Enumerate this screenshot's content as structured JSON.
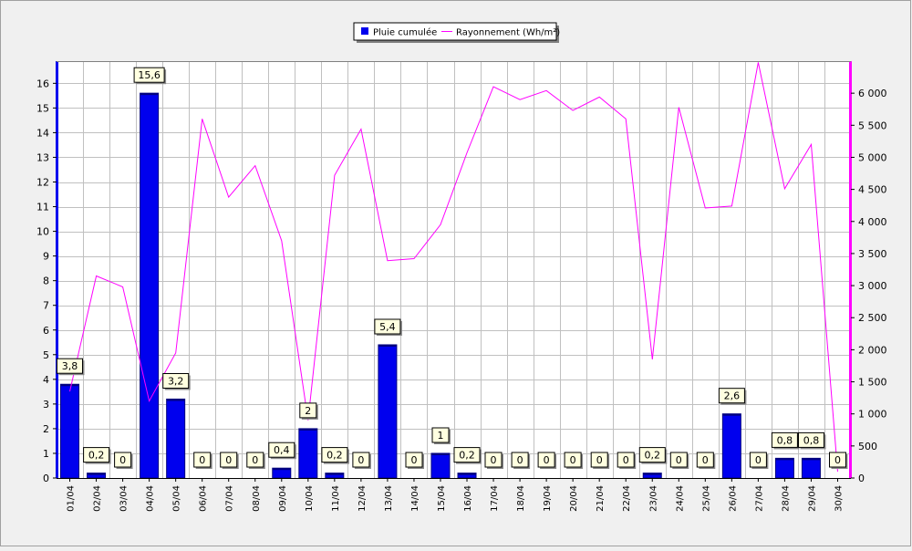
{
  "chart_data": {
    "type": "bar",
    "categories": [
      "01/04",
      "02/04",
      "03/04",
      "04/04",
      "05/04",
      "06/04",
      "07/04",
      "08/04",
      "09/04",
      "10/04",
      "11/04",
      "12/04",
      "13/04",
      "14/04",
      "15/04",
      "16/04",
      "17/04",
      "18/04",
      "19/04",
      "20/04",
      "21/04",
      "22/04",
      "23/04",
      "24/04",
      "25/04",
      "26/04",
      "27/04",
      "28/04",
      "29/04",
      "30/04"
    ],
    "series": [
      {
        "name": "Pluie cumulée",
        "type": "bar",
        "axis": "left",
        "color": "#0000ee",
        "values": [
          3.8,
          0.2,
          0,
          15.6,
          3.2,
          0,
          0,
          0,
          0.4,
          2,
          0.2,
          0,
          5.4,
          0,
          1,
          0.2,
          0,
          0,
          0,
          0,
          0,
          0,
          0.2,
          0,
          0,
          2.6,
          0,
          0.8,
          0.8,
          0
        ],
        "labels": [
          "3,8",
          "0,2",
          "0",
          "15,6",
          "3,2",
          "0",
          "0",
          "0",
          "0,4",
          "2",
          "0,2",
          "0",
          "5,4",
          "0",
          "1",
          "0,2",
          "0",
          "0",
          "0",
          "0",
          "0",
          "0",
          "0,2",
          "0",
          "0",
          "2,6",
          "0",
          "0,8",
          "0,8",
          "0"
        ]
      },
      {
        "name": "Rayonnement (Wh/m²)",
        "type": "line",
        "axis": "right",
        "color": "#ff00ff",
        "values": [
          1350,
          3150,
          2980,
          1200,
          1950,
          5600,
          4380,
          4870,
          3700,
          900,
          4720,
          5440,
          3390,
          3420,
          3950,
          5070,
          6100,
          5900,
          6040,
          5730,
          5940,
          5600,
          1850,
          5780,
          4210,
          4240,
          6480,
          4510,
          5200,
          100
        ]
      }
    ],
    "ylim": [
      0,
      16.9
    ],
    "yticks": [
      0,
      1,
      2,
      3,
      4,
      5,
      6,
      7,
      8,
      9,
      10,
      11,
      12,
      13,
      14,
      15,
      16
    ],
    "y2lim": [
      0,
      6500
    ],
    "y2ticks": [
      0,
      500,
      1000,
      1500,
      2000,
      2500,
      3000,
      3500,
      4000,
      4500,
      5000,
      5500,
      6000
    ],
    "y2ticklabels": [
      "0",
      "500",
      "1 000",
      "1 500",
      "2 000",
      "2 500",
      "3 000",
      "3 500",
      "4 000",
      "4 500",
      "5 000",
      "5 500",
      "6 000"
    ],
    "grid": true,
    "legend_position": "top-center",
    "colors": {
      "background": "#f0f0f0",
      "plot_background": "#ffffff",
      "grid": "#c0c0c0",
      "left_axis": "#0000ee",
      "right_axis": "#ff00ff",
      "label_box": "#ffffe0"
    }
  }
}
